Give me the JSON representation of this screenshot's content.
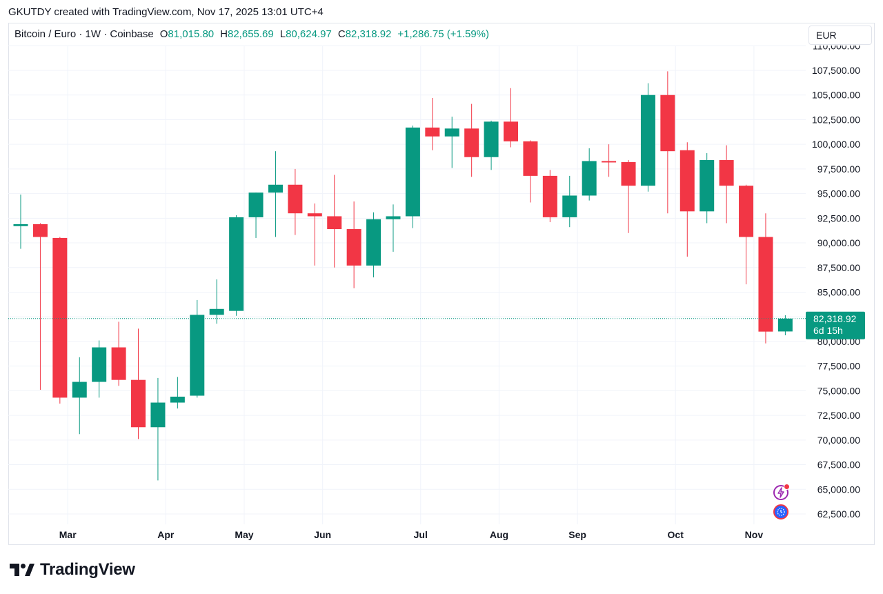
{
  "header": {
    "text": "GKUTDY created with TradingView.com, Nov 17, 2025 13:01 UTC+4"
  },
  "legend": {
    "symbol": "Bitcoin / Euro · 1W · Coinbase",
    "o_label": "O",
    "o_value": "81,015.80",
    "h_label": "H",
    "h_value": "82,655.69",
    "l_label": "L",
    "l_value": "80,624.97",
    "c_label": "C",
    "c_value": "82,318.92",
    "change": "+1,286.75 (+1.59%)"
  },
  "currency": "EUR",
  "brand": "TradingView",
  "colors": {
    "up": "#089981",
    "down": "#f23645",
    "grid": "#f0f3fa",
    "axis_text": "#131722"
  },
  "chart_data": {
    "type": "candlestick",
    "title": "Bitcoin / Euro · 1W · Coinbase",
    "ylim": [
      60000,
      111000
    ],
    "y_ticks": [
      62500,
      65000,
      67500,
      70000,
      72500,
      75000,
      77500,
      80000,
      82500,
      85000,
      87500,
      90000,
      92500,
      95000,
      97500,
      100000,
      102500,
      105000,
      107500,
      110000
    ],
    "y_tick_labels": [
      "62,500.00",
      "65,000.00",
      "67,500.00",
      "70,000.00",
      "72,500.00",
      "75,000.00",
      "77,500.00",
      "80,000.00",
      "82,500.00",
      "85,000.00",
      "87,500.00",
      "90,000.00",
      "92,500.00",
      "95,000.00",
      "97,500.00",
      "100,000.00",
      "102,500.00",
      "105,000.00",
      "107,500.00",
      "110,000.00"
    ],
    "x_labels": [
      {
        "label": "Mar",
        "index": 2.4
      },
      {
        "label": "Apr",
        "index": 7.4
      },
      {
        "label": "May",
        "index": 11.4
      },
      {
        "label": "Jun",
        "index": 15.4
      },
      {
        "label": "Jul",
        "index": 20.4
      },
      {
        "label": "Aug",
        "index": 24.4
      },
      {
        "label": "Sep",
        "index": 28.4
      },
      {
        "label": "Oct",
        "index": 33.4
      },
      {
        "label": "Nov",
        "index": 37.4
      }
    ],
    "candles": [
      {
        "o": 91700,
        "h": 94900,
        "l": 89400,
        "c": 91900
      },
      {
        "o": 91900,
        "h": 92000,
        "l": 75100,
        "c": 90600
      },
      {
        "o": 90500,
        "h": 90600,
        "l": 73700,
        "c": 74300
      },
      {
        "o": 74300,
        "h": 78400,
        "l": 70600,
        "c": 75900
      },
      {
        "o": 75900,
        "h": 80100,
        "l": 74300,
        "c": 79400
      },
      {
        "o": 79400,
        "h": 82000,
        "l": 75500,
        "c": 76100
      },
      {
        "o": 76100,
        "h": 81300,
        "l": 70100,
        "c": 71300
      },
      {
        "o": 71300,
        "h": 76300,
        "l": 65900,
        "c": 73800
      },
      {
        "o": 73800,
        "h": 76400,
        "l": 73200,
        "c": 74400
      },
      {
        "o": 74500,
        "h": 84200,
        "l": 74300,
        "c": 82700
      },
      {
        "o": 82700,
        "h": 86300,
        "l": 81800,
        "c": 83300
      },
      {
        "o": 83100,
        "h": 92800,
        "l": 82600,
        "c": 92600
      },
      {
        "o": 92600,
        "h": 95100,
        "l": 90500,
        "c": 95100
      },
      {
        "o": 95100,
        "h": 99300,
        "l": 90600,
        "c": 95900
      },
      {
        "o": 95900,
        "h": 97500,
        "l": 90800,
        "c": 93000
      },
      {
        "o": 93000,
        "h": 94000,
        "l": 87700,
        "c": 92700
      },
      {
        "o": 92700,
        "h": 96900,
        "l": 87500,
        "c": 91400
      },
      {
        "o": 91400,
        "h": 94200,
        "l": 85400,
        "c": 87700
      },
      {
        "o": 87700,
        "h": 93100,
        "l": 86500,
        "c": 92400
      },
      {
        "o": 92400,
        "h": 93900,
        "l": 89100,
        "c": 92700
      },
      {
        "o": 92700,
        "h": 101900,
        "l": 91500,
        "c": 101700
      },
      {
        "o": 101700,
        "h": 104700,
        "l": 99400,
        "c": 100800
      },
      {
        "o": 100800,
        "h": 102800,
        "l": 97600,
        "c": 101600
      },
      {
        "o": 101600,
        "h": 104100,
        "l": 96700,
        "c": 98700
      },
      {
        "o": 98700,
        "h": 102400,
        "l": 97400,
        "c": 102300
      },
      {
        "o": 102300,
        "h": 105700,
        "l": 99700,
        "c": 100300
      },
      {
        "o": 100300,
        "h": 100400,
        "l": 94100,
        "c": 96800
      },
      {
        "o": 96800,
        "h": 97400,
        "l": 92100,
        "c": 92600
      },
      {
        "o": 92600,
        "h": 96800,
        "l": 91600,
        "c": 94800
      },
      {
        "o": 94800,
        "h": 99600,
        "l": 94300,
        "c": 98300
      },
      {
        "o": 98300,
        "h": 100000,
        "l": 96700,
        "c": 98200
      },
      {
        "o": 98200,
        "h": 98400,
        "l": 91000,
        "c": 95800
      },
      {
        "o": 95800,
        "h": 106200,
        "l": 95200,
        "c": 105000
      },
      {
        "o": 105000,
        "h": 107400,
        "l": 93000,
        "c": 99300
      },
      {
        "o": 99400,
        "h": 100200,
        "l": 88600,
        "c": 93200
      },
      {
        "o": 93200,
        "h": 99100,
        "l": 92000,
        "c": 98400
      },
      {
        "o": 98400,
        "h": 99900,
        "l": 92000,
        "c": 95800
      },
      {
        "o": 95800,
        "h": 95900,
        "l": 85800,
        "c": 90600
      },
      {
        "o": 90600,
        "h": 93000,
        "l": 79800,
        "c": 81000
      },
      {
        "o": 81015.8,
        "h": 82655.69,
        "l": 80624.97,
        "c": 82318.92
      }
    ],
    "last_price": 82318.92,
    "last_price_label": "82,318.92",
    "countdown_label": "6d 15h"
  }
}
